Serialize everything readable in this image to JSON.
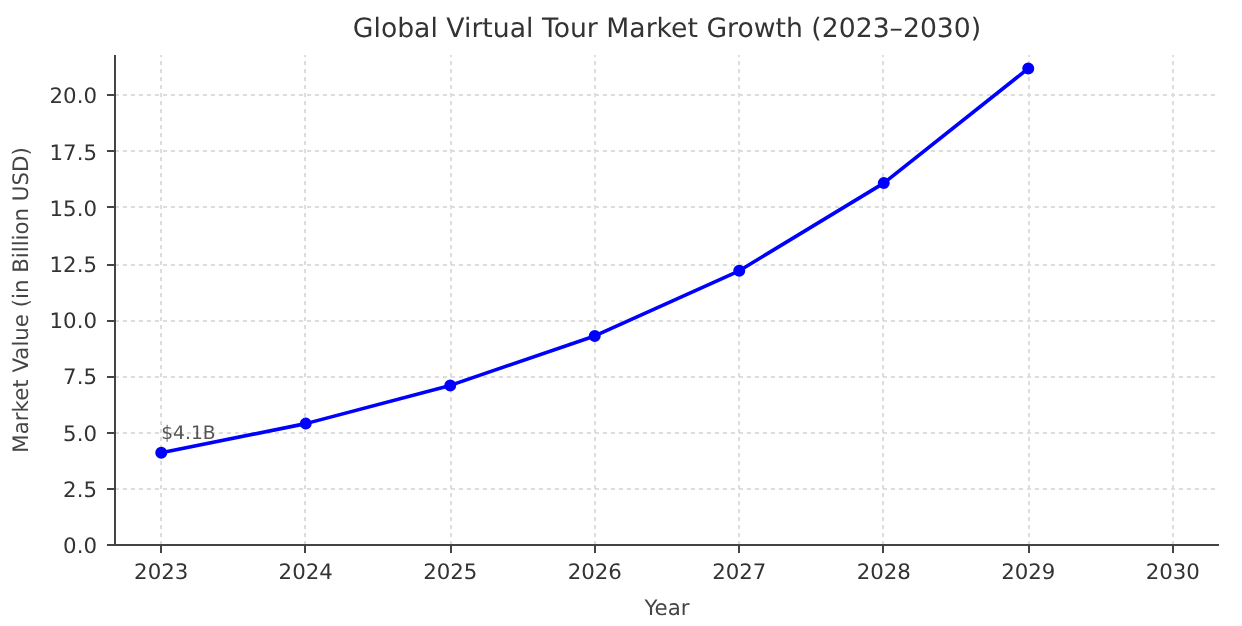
{
  "chart_data": {
    "type": "line",
    "title": "Global Virtual Tour Market Growth (2023–2030)",
    "xlabel": "Year",
    "ylabel": "Market Value (in Billion USD)",
    "x": [
      2023,
      2024,
      2025,
      2026,
      2027,
      2028,
      2029
    ],
    "series": [
      {
        "color": "#0000ff",
        "values": [
          4.1,
          5.4,
          7.1,
          9.3,
          12.2,
          16.1,
          21.2
        ]
      }
    ],
    "xlim": [
      2022.68,
      2030.32
    ],
    "xticks": [
      2023,
      2024,
      2025,
      2026,
      2027,
      2028,
      2029,
      2030
    ],
    "ylim": [
      0,
      21.8
    ],
    "yticks": [
      {
        "value": 0,
        "label": "0.0"
      },
      {
        "value": 2.5,
        "label": "2.5"
      },
      {
        "value": 5,
        "label": "5.0"
      },
      {
        "value": 7.5,
        "label": "7.5"
      },
      {
        "value": 10,
        "label": "10.0"
      },
      {
        "value": 12.5,
        "label": "12.5"
      },
      {
        "value": 15,
        "label": "15.0"
      },
      {
        "value": 17.5,
        "label": "17.5"
      },
      {
        "value": 20,
        "label": "20.0"
      }
    ],
    "annotations": [
      {
        "text": "$4.1B",
        "x": 2023,
        "y": 4.1
      }
    ],
    "grid": true,
    "marker": "circle",
    "line_style": "solid"
  }
}
